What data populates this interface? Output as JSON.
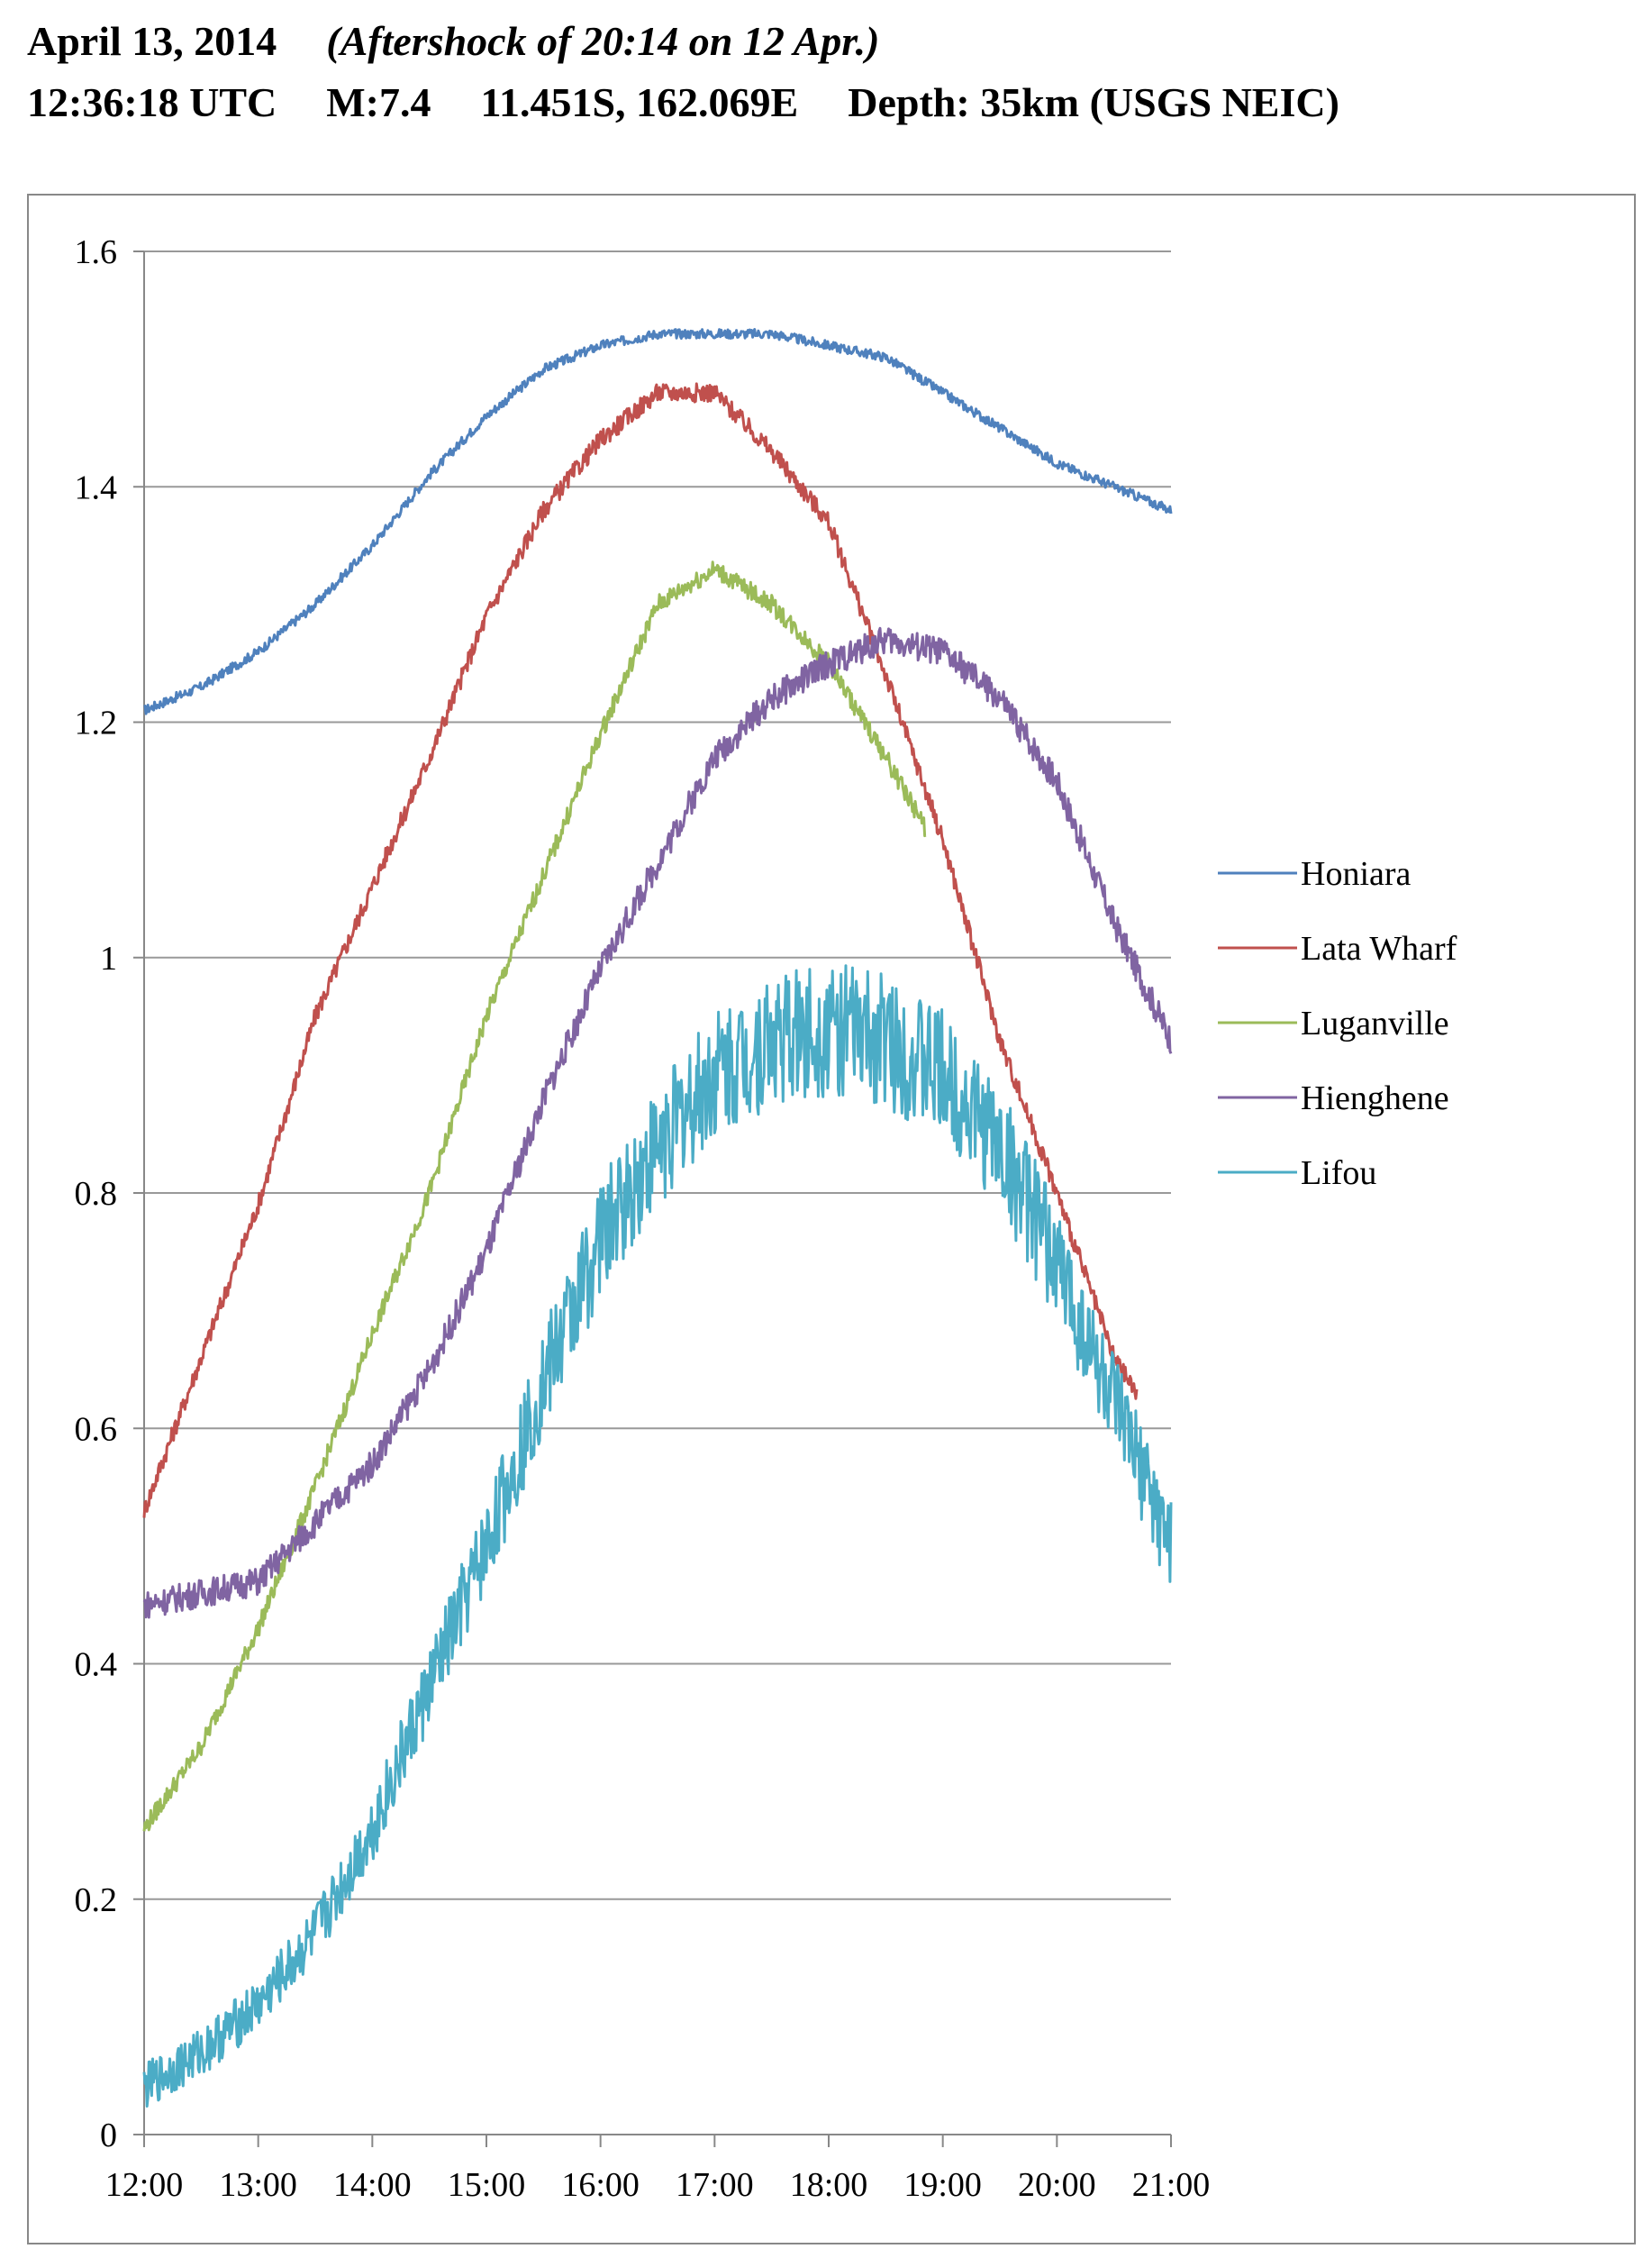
{
  "header": {
    "date": "April 13, 2014",
    "note": "(Aftershock of 20:14 on 12 Apr.)",
    "time": "12:36:18 UTC",
    "magnitude": "M:7.4",
    "location": "11.451S, 162.069E",
    "depth": "Depth: 35km (USGS NEIC)"
  },
  "chart_data": {
    "type": "line",
    "title": "",
    "xlabel": "",
    "ylabel": "",
    "xlim": [
      12,
      21
    ],
    "ylim": [
      0,
      1.6
    ],
    "grid": true,
    "legend_position": "right",
    "x_ticks": [
      "12:00",
      "13:00",
      "14:00",
      "15:00",
      "16:00",
      "17:00",
      "18:00",
      "19:00",
      "20:00",
      "21:00"
    ],
    "y_ticks": [
      "0",
      "0.2",
      "0.4",
      "0.6",
      "0.8",
      "1",
      "1.2",
      "1.4",
      "1.6"
    ],
    "series": [
      {
        "name": "Honiara",
        "color": "#4F81BD",
        "x": [
          12.0,
          12.5,
          13.0,
          13.5,
          14.0,
          14.5,
          15.0,
          15.5,
          16.0,
          16.5,
          17.0,
          17.5,
          18.0,
          18.5,
          19.0,
          19.5,
          20.0,
          20.5,
          21.0
        ],
        "values": [
          1.21,
          1.23,
          1.26,
          1.3,
          1.35,
          1.41,
          1.46,
          1.5,
          1.52,
          1.53,
          1.53,
          1.53,
          1.52,
          1.51,
          1.48,
          1.45,
          1.42,
          1.4,
          1.38
        ]
      },
      {
        "name": "Lata Wharf",
        "color": "#C0504D",
        "x": [
          12.0,
          12.5,
          13.0,
          13.5,
          14.0,
          14.5,
          15.0,
          15.5,
          16.0,
          16.5,
          17.0,
          17.5,
          18.0,
          18.5,
          19.0,
          19.5,
          20.0,
          20.5,
          20.7
        ],
        "values": [
          0.53,
          0.66,
          0.79,
          0.95,
          1.06,
          1.17,
          1.29,
          1.38,
          1.44,
          1.48,
          1.48,
          1.43,
          1.37,
          1.24,
          1.1,
          0.93,
          0.8,
          0.66,
          0.63
        ]
      },
      {
        "name": "Luganville",
        "color": "#9BBB59",
        "x": [
          12.0,
          12.5,
          13.0,
          13.5,
          14.0,
          14.5,
          15.0,
          15.5,
          16.0,
          16.5,
          17.0,
          17.5,
          18.0,
          18.5,
          18.85
        ],
        "values": [
          0.26,
          0.33,
          0.43,
          0.55,
          0.68,
          0.8,
          0.95,
          1.07,
          1.19,
          1.3,
          1.33,
          1.3,
          1.25,
          1.17,
          1.11
        ]
      },
      {
        "name": "Hienghene",
        "color": "#8064A2",
        "x": [
          12.0,
          12.5,
          13.0,
          13.5,
          14.0,
          14.5,
          15.0,
          15.5,
          16.0,
          16.5,
          17.0,
          17.5,
          18.0,
          18.5,
          19.0,
          19.5,
          20.0,
          20.5,
          21.0
        ],
        "values": [
          0.45,
          0.46,
          0.47,
          0.52,
          0.57,
          0.65,
          0.75,
          0.88,
          0.99,
          1.08,
          1.17,
          1.22,
          1.25,
          1.27,
          1.26,
          1.22,
          1.15,
          1.03,
          0.93
        ]
      },
      {
        "name": "Lifou",
        "color": "#4BACC6",
        "x": [
          12.0,
          12.5,
          13.0,
          13.5,
          14.0,
          14.5,
          15.0,
          15.5,
          16.0,
          16.5,
          17.0,
          17.5,
          18.0,
          18.5,
          19.0,
          19.5,
          20.0,
          20.5,
          21.0
        ],
        "values": [
          0.04,
          0.07,
          0.11,
          0.17,
          0.26,
          0.38,
          0.5,
          0.64,
          0.76,
          0.84,
          0.9,
          0.93,
          0.94,
          0.93,
          0.9,
          0.84,
          0.74,
          0.62,
          0.5
        ]
      }
    ]
  }
}
